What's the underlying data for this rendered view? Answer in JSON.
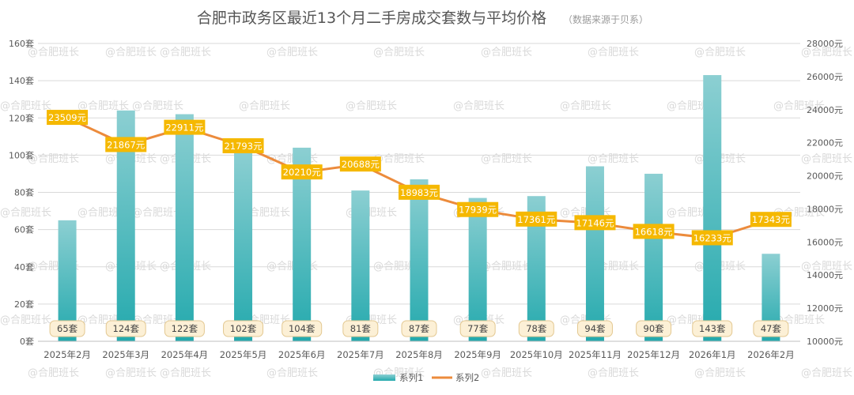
{
  "chart_data": {
    "type": "bar",
    "title": "合肥市政务区最近13个月二手房成交套数与平均价格",
    "subtitle": "（数据来源于贝系）",
    "categories": [
      "2025年2月",
      "2025年3月",
      "2025年4月",
      "2025年5月",
      "2025年6月",
      "2025年7月",
      "2025年8月",
      "2025年9月",
      "2025年10月",
      "2025年11月",
      "2025年12月",
      "2026年1月",
      "2026年2月"
    ],
    "series": [
      {
        "name": "系列1",
        "type": "bar",
        "axis": "left",
        "values": [
          65,
          124,
          122,
          102,
          104,
          81,
          87,
          77,
          78,
          94,
          90,
          143,
          47
        ],
        "labels": [
          "65套",
          "124套",
          "122套",
          "102套",
          "104套",
          "81套",
          "87套",
          "77套",
          "78套",
          "94套",
          "90套",
          "143套",
          "47套"
        ]
      },
      {
        "name": "系列2",
        "type": "line",
        "axis": "right",
        "values": [
          23509,
          21867,
          22911,
          21793,
          20210,
          20688,
          18983,
          17939,
          17361,
          17146,
          16618,
          16233,
          17343
        ],
        "labels": [
          "23509元",
          "21867元",
          "22911元",
          "21793元",
          "20210元",
          "20688元",
          "18983元",
          "17939元",
          "17361元",
          "17146元",
          "16618元",
          "16233元",
          "17343元"
        ]
      }
    ],
    "y_left": {
      "min": 0,
      "max": 160,
      "step": 20,
      "ticks": [
        "0套",
        "20套",
        "40套",
        "60套",
        "80套",
        "100套",
        "120套",
        "140套",
        "160套"
      ]
    },
    "y_right": {
      "min": 10000,
      "max": 28000,
      "step": 2000,
      "ticks": [
        "10000元",
        "12000元",
        "14000元",
        "16000元",
        "18000元",
        "20000元",
        "22000元",
        "24000元",
        "26000元",
        "28000元"
      ]
    },
    "grid": true,
    "legend": {
      "position": "bottom",
      "entries": [
        "系列1",
        "系列2"
      ]
    },
    "colors": {
      "bar_top": "#8ccfd2",
      "bar_bottom": "#23a9ad",
      "line": "#ec8b3c",
      "line_label_bg": "#f5b800",
      "bar_label_bg": "#fcf0d6",
      "bar_label_border": "#e3c891",
      "grid": "#d9d9d9"
    },
    "watermark": "@合肥班长"
  }
}
